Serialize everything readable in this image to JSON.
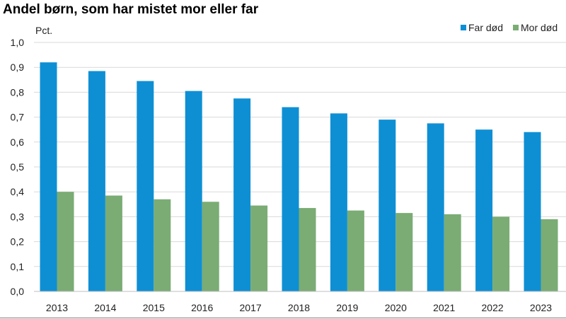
{
  "chart_data": {
    "type": "bar",
    "title": "Andel børn, som har mistet mor eller far",
    "ylabel": "Pct.",
    "xlabel": "",
    "ylim": [
      0,
      1.0
    ],
    "yticks": [
      "0,0",
      "0,1",
      "0,2",
      "0,3",
      "0,4",
      "0,5",
      "0,6",
      "0,7",
      "0,8",
      "0,9",
      "1,0"
    ],
    "categories": [
      "2013",
      "2014",
      "2015",
      "2016",
      "2017",
      "2018",
      "2019",
      "2020",
      "2021",
      "2022",
      "2023"
    ],
    "series": [
      {
        "name": "Far død",
        "color": "#0e8fd4",
        "values": [
          0.92,
          0.885,
          0.845,
          0.805,
          0.775,
          0.74,
          0.715,
          0.69,
          0.675,
          0.65,
          0.64
        ]
      },
      {
        "name": "Mor død",
        "color": "#7aac74",
        "values": [
          0.4,
          0.385,
          0.37,
          0.36,
          0.345,
          0.335,
          0.325,
          0.315,
          0.31,
          0.3,
          0.29
        ]
      }
    ],
    "grid": true,
    "legend_position": "top-right"
  }
}
